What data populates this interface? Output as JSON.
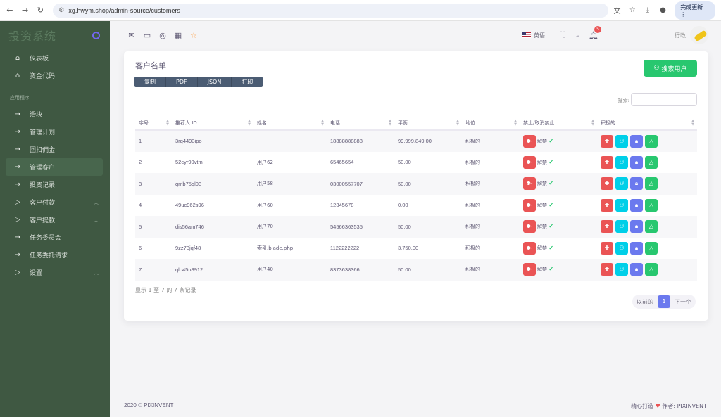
{
  "browser": {
    "url": "xg.hwym.shop/admin-source/customers",
    "update_label": "完成更新"
  },
  "sidebar": {
    "brand": "投资系统",
    "items_top": [
      {
        "label": "仪表板",
        "icon": "home-icon"
      },
      {
        "label": "资金代码",
        "icon": "home-icon"
      }
    ],
    "section_header": "应用程序",
    "items": [
      {
        "label": "滑块",
        "icon": "arrow-right-icon",
        "expandable": false
      },
      {
        "label": "管理计划",
        "icon": "arrow-right-icon",
        "expandable": false
      },
      {
        "label": "回扣佣金",
        "icon": "arrow-right-icon",
        "expandable": false
      },
      {
        "label": "管理客户",
        "icon": "arrow-right-icon",
        "expandable": false,
        "active": true
      },
      {
        "label": "投资记录",
        "icon": "arrow-right-icon",
        "expandable": false
      },
      {
        "label": "客户付款",
        "icon": "play-icon",
        "expandable": true
      },
      {
        "label": "客户提款",
        "icon": "play-icon",
        "expandable": true
      },
      {
        "label": "任务委员会",
        "icon": "arrow-right-icon",
        "expandable": false
      },
      {
        "label": "任务委托请求",
        "icon": "arrow-right-icon",
        "expandable": false
      },
      {
        "label": "设置",
        "icon": "play-icon",
        "expandable": true
      }
    ]
  },
  "topnav": {
    "language": "英语",
    "notification_count": "5",
    "user_name": "行政"
  },
  "card": {
    "title": "客户名单",
    "search_user_button": "搜索用户",
    "export_buttons": [
      "复制",
      "PDF",
      "JSON",
      "打印"
    ],
    "search_label": "搜索:",
    "columns": [
      "序号",
      "推荐人 ID",
      "姓名",
      "电话",
      "平衡",
      "地位",
      "禁止/取消禁止",
      "积极的"
    ],
    "rows": [
      {
        "no": "1",
        "ref": "3rq4493ipo",
        "name": "",
        "phone": "18888888888",
        "balance": "99,999,849.00",
        "status": "积极的",
        "unban": "解禁"
      },
      {
        "no": "2",
        "ref": "52cyr90vtm",
        "name": "用户62",
        "phone": "65465654",
        "balance": "50.00",
        "status": "积极的",
        "unban": "解禁"
      },
      {
        "no": "3",
        "ref": "qmb75ql03",
        "name": "用户58",
        "phone": "03000557707",
        "balance": "50.00",
        "status": "积极的",
        "unban": "解禁"
      },
      {
        "no": "4",
        "ref": "49uc962s96",
        "name": "用户60",
        "phone": "12345678",
        "balance": "0.00",
        "status": "积极的",
        "unban": "解禁"
      },
      {
        "no": "5",
        "ref": "dis56am746",
        "name": "用户70",
        "phone": "54566363535",
        "balance": "50.00",
        "status": "积极的",
        "unban": "解禁"
      },
      {
        "no": "6",
        "ref": "9zz73jqf48",
        "name": "索引.blade.php",
        "phone": "1122222222",
        "balance": "3,750.00",
        "status": "积极的",
        "unban": "解禁"
      },
      {
        "no": "7",
        "ref": "qlo45u8912",
        "name": "用户40",
        "phone": "8373638366",
        "balance": "50.00",
        "status": "积极的",
        "unban": "解禁"
      }
    ],
    "info": "显示 1 至 7 的 7 条记录",
    "pagination": {
      "prev": "以前的",
      "current": "1",
      "next": "下一个"
    }
  },
  "footer": {
    "left": "2020 © PIXINVENT",
    "right_prefix": "精心打造",
    "right_suffix": "作者: PIXINVENT"
  },
  "colors": {
    "sidebar_bg": "#3f5842",
    "primary": "#6b79ee",
    "success": "#28c76f",
    "danger": "#ea5455",
    "info": "#00cfe8"
  }
}
